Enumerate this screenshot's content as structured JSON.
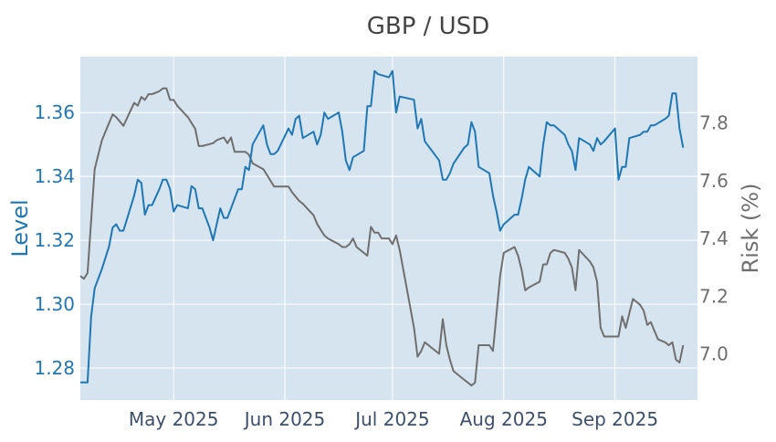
{
  "chart_data": {
    "type": "line",
    "title": "GBP / USD",
    "xlabel": "",
    "y_left_label": "Level",
    "y_right_label": "Risk (%)",
    "x_range": [
      "2025-04-05",
      "2025-09-24"
    ],
    "y_left_range": [
      1.27,
      1.3775
    ],
    "y_right_range": [
      6.84,
      8.03
    ],
    "x_ticks": [
      {
        "date": "2025-05-01",
        "label": "May 2025"
      },
      {
        "date": "2025-06-01",
        "label": "Jun 2025"
      },
      {
        "date": "2025-07-01",
        "label": "Jul 2025"
      },
      {
        "date": "2025-08-01",
        "label": "Aug 2025"
      },
      {
        "date": "2025-09-01",
        "label": "Sep 2025"
      }
    ],
    "y_left_ticks": [
      {
        "value": 1.28,
        "label": "1.28"
      },
      {
        "value": 1.3,
        "label": "1.30"
      },
      {
        "value": 1.32,
        "label": "1.32"
      },
      {
        "value": 1.34,
        "label": "1.34"
      },
      {
        "value": 1.36,
        "label": "1.36"
      }
    ],
    "y_right_ticks": [
      {
        "value": 7.0,
        "label": "7.0"
      },
      {
        "value": 7.2,
        "label": "7.2"
      },
      {
        "value": 7.4,
        "label": "7.4"
      },
      {
        "value": 7.6,
        "label": "7.6"
      },
      {
        "value": 7.8,
        "label": "7.8"
      }
    ],
    "grid": true,
    "colors": {
      "plot_bg": "#d6e4f0",
      "grid": "#ffffff",
      "level": "#1f77b4",
      "risk": "#6f6f6f",
      "title": "#444444",
      "left_axis": "#1f77b4",
      "right_axis": "#6f6f6f",
      "x_axis": "#3d4f6b"
    },
    "series": [
      {
        "axis": "left",
        "points": [
          [
            "2025-04-05",
            1.2755
          ],
          [
            "2025-04-07",
            1.2755
          ],
          [
            "2025-04-08",
            1.296
          ],
          [
            "2025-04-09",
            1.305
          ],
          [
            "2025-04-11",
            1.311
          ],
          [
            "2025-04-13",
            1.318
          ],
          [
            "2025-04-14",
            1.324
          ],
          [
            "2025-04-15",
            1.325
          ],
          [
            "2025-04-16",
            1.323
          ],
          [
            "2025-04-17",
            1.323
          ],
          [
            "2025-04-20",
            1.334
          ],
          [
            "2025-04-21",
            1.339
          ],
          [
            "2025-04-22",
            1.338
          ],
          [
            "2025-04-23",
            1.328
          ],
          [
            "2025-04-24",
            1.331
          ],
          [
            "2025-04-25",
            1.331
          ],
          [
            "2025-04-27",
            1.336
          ],
          [
            "2025-04-28",
            1.339
          ],
          [
            "2025-04-29",
            1.339
          ],
          [
            "2025-04-30",
            1.336
          ],
          [
            "2025-05-01",
            1.329
          ],
          [
            "2025-05-02",
            1.331
          ],
          [
            "2025-05-05",
            1.33
          ],
          [
            "2025-05-06",
            1.337
          ],
          [
            "2025-05-07",
            1.336
          ],
          [
            "2025-05-08",
            1.33
          ],
          [
            "2025-05-09",
            1.33
          ],
          [
            "2025-05-11",
            1.324
          ],
          [
            "2025-05-12",
            1.32
          ],
          [
            "2025-05-14",
            1.33
          ],
          [
            "2025-05-15",
            1.327
          ],
          [
            "2025-05-16",
            1.327
          ],
          [
            "2025-05-19",
            1.336
          ],
          [
            "2025-05-20",
            1.336
          ],
          [
            "2025-05-21",
            1.343
          ],
          [
            "2025-05-22",
            1.342
          ],
          [
            "2025-05-23",
            1.35
          ],
          [
            "2025-05-26",
            1.356
          ],
          [
            "2025-05-27",
            1.35
          ],
          [
            "2025-05-28",
            1.347
          ],
          [
            "2025-05-29",
            1.347
          ],
          [
            "2025-05-30",
            1.348
          ],
          [
            "2025-06-02",
            1.355
          ],
          [
            "2025-06-03",
            1.353
          ],
          [
            "2025-06-04",
            1.358
          ],
          [
            "2025-06-05",
            1.359
          ],
          [
            "2025-06-06",
            1.352
          ],
          [
            "2025-06-09",
            1.354
          ],
          [
            "2025-06-10",
            1.35
          ],
          [
            "2025-06-11",
            1.353
          ],
          [
            "2025-06-12",
            1.36
          ],
          [
            "2025-06-13",
            1.358
          ],
          [
            "2025-06-16",
            1.36
          ],
          [
            "2025-06-17",
            1.354
          ],
          [
            "2025-06-18",
            1.345
          ],
          [
            "2025-06-19",
            1.342
          ],
          [
            "2025-06-20",
            1.346
          ],
          [
            "2025-06-23",
            1.348
          ],
          [
            "2025-06-24",
            1.362
          ],
          [
            "2025-06-25",
            1.362
          ],
          [
            "2025-06-26",
            1.373
          ],
          [
            "2025-06-27",
            1.372
          ],
          [
            "2025-06-30",
            1.371
          ],
          [
            "2025-07-01",
            1.373
          ],
          [
            "2025-07-02",
            1.36
          ],
          [
            "2025-07-03",
            1.365
          ],
          [
            "2025-07-07",
            1.364
          ],
          [
            "2025-07-08",
            1.355
          ],
          [
            "2025-07-09",
            1.358
          ],
          [
            "2025-07-10",
            1.351
          ],
          [
            "2025-07-14",
            1.345
          ],
          [
            "2025-07-15",
            1.339
          ],
          [
            "2025-07-16",
            1.339
          ],
          [
            "2025-07-17",
            1.341
          ],
          [
            "2025-07-18",
            1.344
          ],
          [
            "2025-07-21",
            1.349
          ],
          [
            "2025-07-22",
            1.35
          ],
          [
            "2025-07-23",
            1.357
          ],
          [
            "2025-07-24",
            1.354
          ],
          [
            "2025-07-25",
            1.343
          ],
          [
            "2025-07-28",
            1.341
          ],
          [
            "2025-07-29",
            1.334
          ],
          [
            "2025-07-30",
            1.329
          ],
          [
            "2025-07-31",
            1.323
          ],
          [
            "2025-08-01",
            1.325
          ],
          [
            "2025-08-04",
            1.328
          ],
          [
            "2025-08-05",
            1.328
          ],
          [
            "2025-08-06",
            1.333
          ],
          [
            "2025-08-07",
            1.339
          ],
          [
            "2025-08-08",
            1.343
          ],
          [
            "2025-08-11",
            1.34
          ],
          [
            "2025-08-12",
            1.35
          ],
          [
            "2025-08-13",
            1.357
          ],
          [
            "2025-08-14",
            1.356
          ],
          [
            "2025-08-15",
            1.356
          ],
          [
            "2025-08-18",
            1.353
          ],
          [
            "2025-08-19",
            1.35
          ],
          [
            "2025-08-20",
            1.348
          ],
          [
            "2025-08-21",
            1.342
          ],
          [
            "2025-08-22",
            1.352
          ],
          [
            "2025-08-25",
            1.35
          ],
          [
            "2025-08-26",
            1.348
          ],
          [
            "2025-08-27",
            1.352
          ],
          [
            "2025-08-28",
            1.35
          ],
          [
            "2025-08-29",
            1.351
          ],
          [
            "2025-09-01",
            1.355
          ],
          [
            "2025-09-02",
            1.339
          ],
          [
            "2025-09-03",
            1.343
          ],
          [
            "2025-09-04",
            1.343
          ],
          [
            "2025-09-05",
            1.352
          ],
          [
            "2025-09-08",
            1.353
          ],
          [
            "2025-09-09",
            1.354
          ],
          [
            "2025-09-10",
            1.354
          ],
          [
            "2025-09-11",
            1.356
          ],
          [
            "2025-09-12",
            1.356
          ],
          [
            "2025-09-15",
            1.358
          ],
          [
            "2025-09-16",
            1.359
          ],
          [
            "2025-09-17",
            1.366
          ],
          [
            "2025-09-18",
            1.366
          ],
          [
            "2025-09-19",
            1.355
          ],
          [
            "2025-09-20",
            1.349
          ]
        ]
      },
      {
        "axis": "right",
        "points": [
          [
            "2025-04-05",
            7.27
          ],
          [
            "2025-04-06",
            7.26
          ],
          [
            "2025-04-07",
            7.28
          ],
          [
            "2025-04-09",
            7.64
          ],
          [
            "2025-04-11",
            7.74
          ],
          [
            "2025-04-14",
            7.83
          ],
          [
            "2025-04-15",
            7.82
          ],
          [
            "2025-04-17",
            7.79
          ],
          [
            "2025-04-20",
            7.87
          ],
          [
            "2025-04-21",
            7.86
          ],
          [
            "2025-04-22",
            7.89
          ],
          [
            "2025-04-23",
            7.88
          ],
          [
            "2025-04-24",
            7.9
          ],
          [
            "2025-04-25",
            7.9
          ],
          [
            "2025-04-27",
            7.91
          ],
          [
            "2025-04-28",
            7.92
          ],
          [
            "2025-04-29",
            7.92
          ],
          [
            "2025-04-30",
            7.88
          ],
          [
            "2025-05-01",
            7.88
          ],
          [
            "2025-05-02",
            7.86
          ],
          [
            "2025-05-05",
            7.82
          ],
          [
            "2025-05-06",
            7.8
          ],
          [
            "2025-05-07",
            7.78
          ],
          [
            "2025-05-08",
            7.72
          ],
          [
            "2025-05-09",
            7.72
          ],
          [
            "2025-05-12",
            7.73
          ],
          [
            "2025-05-13",
            7.74
          ],
          [
            "2025-05-15",
            7.75
          ],
          [
            "2025-05-16",
            7.73
          ],
          [
            "2025-05-17",
            7.75
          ],
          [
            "2025-05-18",
            7.7
          ],
          [
            "2025-05-19",
            7.7
          ],
          [
            "2025-05-21",
            7.7
          ],
          [
            "2025-05-22",
            7.69
          ],
          [
            "2025-05-23",
            7.66
          ],
          [
            "2025-05-26",
            7.64
          ],
          [
            "2025-05-27",
            7.62
          ],
          [
            "2025-05-28",
            7.6
          ],
          [
            "2025-05-29",
            7.58
          ],
          [
            "2025-05-30",
            7.58
          ],
          [
            "2025-06-02",
            7.58
          ],
          [
            "2025-06-03",
            7.56
          ],
          [
            "2025-06-05",
            7.53
          ],
          [
            "2025-06-06",
            7.52
          ],
          [
            "2025-06-09",
            7.48
          ],
          [
            "2025-06-10",
            7.45
          ],
          [
            "2025-06-11",
            7.43
          ],
          [
            "2025-06-12",
            7.41
          ],
          [
            "2025-06-13",
            7.4
          ],
          [
            "2025-06-16",
            7.38
          ],
          [
            "2025-06-17",
            7.37
          ],
          [
            "2025-06-18",
            7.37
          ],
          [
            "2025-06-19",
            7.38
          ],
          [
            "2025-06-20",
            7.4
          ],
          [
            "2025-06-21",
            7.37
          ],
          [
            "2025-06-23",
            7.35
          ],
          [
            "2025-06-24",
            7.34
          ],
          [
            "2025-06-25",
            7.44
          ],
          [
            "2025-06-26",
            7.42
          ],
          [
            "2025-06-27",
            7.42
          ],
          [
            "2025-06-28",
            7.4
          ],
          [
            "2025-06-30",
            7.4
          ],
          [
            "2025-07-01",
            7.38
          ],
          [
            "2025-07-02",
            7.41
          ],
          [
            "2025-07-03",
            7.36
          ],
          [
            "2025-07-07",
            7.09
          ],
          [
            "2025-07-08",
            6.99
          ],
          [
            "2025-07-09",
            7.01
          ],
          [
            "2025-07-10",
            7.04
          ],
          [
            "2025-07-14",
            7.0
          ],
          [
            "2025-07-15",
            7.12
          ],
          [
            "2025-07-16",
            7.03
          ],
          [
            "2025-07-17",
            6.98
          ],
          [
            "2025-07-18",
            6.94
          ],
          [
            "2025-07-21",
            6.91
          ],
          [
            "2025-07-22",
            6.9
          ],
          [
            "2025-07-23",
            6.89
          ],
          [
            "2025-07-24",
            6.9
          ],
          [
            "2025-07-25",
            7.03
          ],
          [
            "2025-07-28",
            7.03
          ],
          [
            "2025-07-29",
            7.01
          ],
          [
            "2025-07-31",
            7.27
          ],
          [
            "2025-08-01",
            7.35
          ],
          [
            "2025-08-04",
            7.37
          ],
          [
            "2025-08-05",
            7.34
          ],
          [
            "2025-08-06",
            7.29
          ],
          [
            "2025-08-07",
            7.22
          ],
          [
            "2025-08-08",
            7.23
          ],
          [
            "2025-08-11",
            7.25
          ],
          [
            "2025-08-12",
            7.31
          ],
          [
            "2025-08-13",
            7.31
          ],
          [
            "2025-08-14",
            7.35
          ],
          [
            "2025-08-15",
            7.36
          ],
          [
            "2025-08-18",
            7.35
          ],
          [
            "2025-08-19",
            7.33
          ],
          [
            "2025-08-20",
            7.3
          ],
          [
            "2025-08-21",
            7.22
          ],
          [
            "2025-08-22",
            7.36
          ],
          [
            "2025-08-25",
            7.32
          ],
          [
            "2025-08-26",
            7.3
          ],
          [
            "2025-08-27",
            7.25
          ],
          [
            "2025-08-28",
            7.09
          ],
          [
            "2025-08-29",
            7.06
          ],
          [
            "2025-09-01",
            7.06
          ],
          [
            "2025-09-02",
            7.06
          ],
          [
            "2025-09-03",
            7.13
          ],
          [
            "2025-09-04",
            7.09
          ],
          [
            "2025-09-05",
            7.14
          ],
          [
            "2025-09-06",
            7.19
          ],
          [
            "2025-09-08",
            7.17
          ],
          [
            "2025-09-09",
            7.15
          ],
          [
            "2025-09-10",
            7.1
          ],
          [
            "2025-09-11",
            7.11
          ],
          [
            "2025-09-12",
            7.08
          ],
          [
            "2025-09-13",
            7.05
          ],
          [
            "2025-09-15",
            7.04
          ],
          [
            "2025-09-16",
            7.03
          ],
          [
            "2025-09-17",
            7.04
          ],
          [
            "2025-09-18",
            6.98
          ],
          [
            "2025-09-19",
            6.97
          ],
          [
            "2025-09-20",
            7.03
          ]
        ]
      }
    ]
  }
}
